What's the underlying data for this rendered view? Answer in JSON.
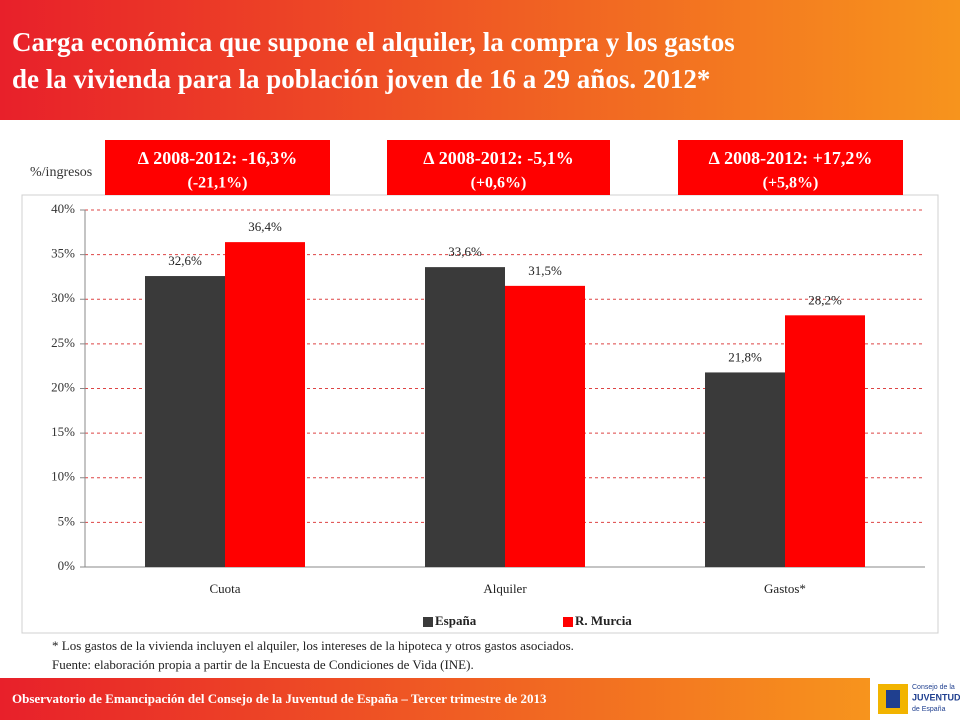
{
  "header": {
    "title_lines": [
      "Carga económica que supone el alquiler, la compra y los gastos",
      "de la vivienda para la población joven de 16 a 29 años. 2012*"
    ]
  },
  "chart_data": {
    "type": "bar",
    "y_label": "%/ingresos",
    "categories": [
      "Cuota",
      "Alquiler",
      "Gastos*"
    ],
    "series": [
      {
        "name": "España",
        "color": "#3a3a3a",
        "values": [
          32.6,
          33.6,
          21.8
        ],
        "value_labels": [
          "32,6%",
          "33,6%",
          "21,8%"
        ]
      },
      {
        "name": "R. Murcia",
        "color": "#ff0000",
        "values": [
          36.4,
          31.5,
          28.2
        ],
        "value_labels": [
          "36,4%",
          "31,5%",
          "28,2%"
        ]
      }
    ],
    "ylim": [
      0,
      40
    ],
    "yticks": [
      {
        "value": 0,
        "label": "0%"
      },
      {
        "value": 5,
        "label": "5%"
      },
      {
        "value": 10,
        "label": "10%"
      },
      {
        "value": 15,
        "label": "15%"
      },
      {
        "value": 20,
        "label": "20%"
      },
      {
        "value": 25,
        "label": "25%"
      },
      {
        "value": 30,
        "label": "30%"
      },
      {
        "value": 35,
        "label": "35%"
      },
      {
        "value": 40,
        "label": "40%"
      }
    ],
    "grid": true,
    "legend": "bottom",
    "annotations": [
      {
        "line1": "∆ 2008-2012:  -16,3%",
        "line2": "(-21,1%)"
      },
      {
        "line1": "∆ 2008-2012:  -5,1%",
        "line2": "(+0,6%)"
      },
      {
        "line1": "∆ 2008-2012:  +17,2%",
        "line2": "(+5,8%)"
      }
    ]
  },
  "notes": [
    "* Los gastos de la vivienda incluyen el alquiler, los intereses de la hipoteca y otros gastos asociados.",
    "Fuente: elaboración propia a partir de la Encuesta de Condiciones de Vida (INE)."
  ],
  "footer": {
    "text": "Observatorio de Emancipación del Consejo de la Juventud de España – Tercer trimestre de 2013",
    "logo_lines": [
      "Consejo de la",
      "JUVENTUD",
      "de España"
    ]
  }
}
